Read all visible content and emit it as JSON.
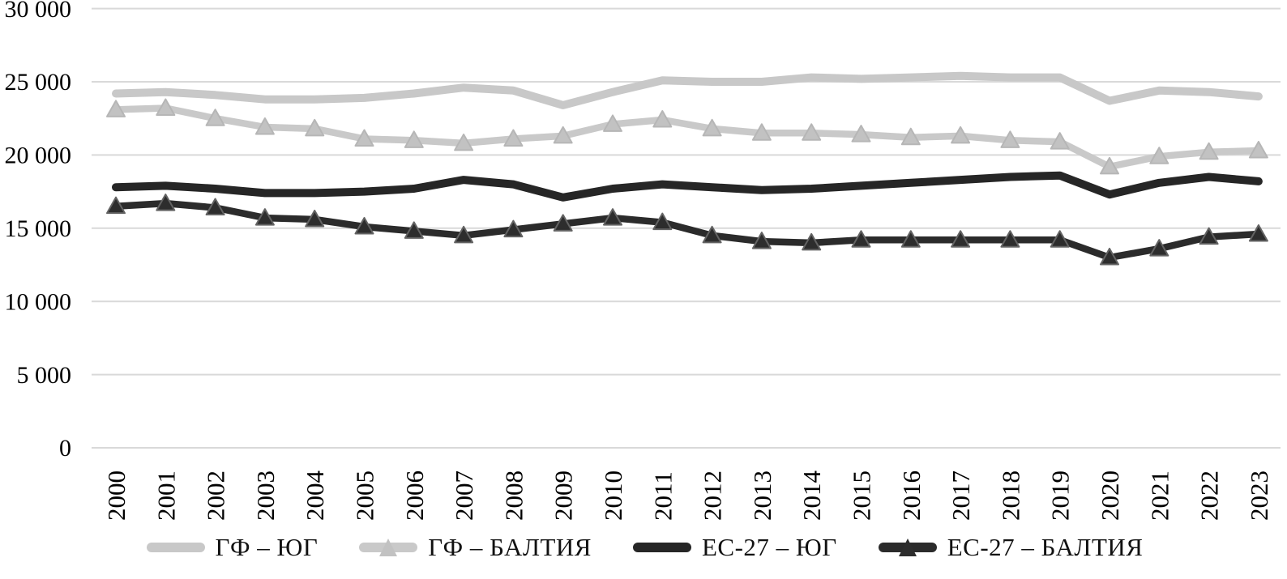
{
  "chart_data": {
    "type": "line",
    "title": "",
    "xlabel": "",
    "ylabel": "",
    "x": [
      2000,
      2001,
      2002,
      2003,
      2004,
      2005,
      2006,
      2007,
      2008,
      2009,
      2010,
      2011,
      2012,
      2013,
      2014,
      2015,
      2016,
      2017,
      2018,
      2019,
      2020,
      2021,
      2022,
      2023
    ],
    "ylim": [
      0,
      30000
    ],
    "ytick_step": 5000,
    "ytick_labels": [
      "0",
      "5 000",
      "10 000",
      "15 000",
      "20 000",
      "25 000",
      "30 000"
    ],
    "grid": "horizontal",
    "legend_position": "bottom",
    "colors": {
      "background": "#ffffff",
      "gridline": "#d9d9d9",
      "text": "#000000"
    },
    "series": [
      {
        "name": "ГФ – ЮГ",
        "color": "#c8c8c8",
        "marker": "none",
        "marker_fill": "#c8c8c8",
        "marker_stroke": "#c8c8c8",
        "values": [
          24200,
          24300,
          24100,
          23800,
          23800,
          23900,
          24200,
          24600,
          24400,
          23400,
          24300,
          25100,
          25000,
          25000,
          25300,
          25200,
          25300,
          25400,
          25300,
          25300,
          23700,
          24400,
          24300,
          24000
        ]
      },
      {
        "name": "ГФ – БАЛТИЯ",
        "color": "#c9c9c9",
        "marker": "triangle",
        "marker_fill": "#c2c2c2",
        "marker_stroke": "#b6b6b6",
        "values": [
          23100,
          23200,
          22500,
          21900,
          21800,
          21100,
          21000,
          20800,
          21100,
          21300,
          22100,
          22400,
          21800,
          21500,
          21500,
          21400,
          21200,
          21300,
          21000,
          20900,
          19200,
          19900,
          20200,
          20300
        ]
      },
      {
        "name": "ЕС-27 – ЮГ",
        "color": "#262626",
        "marker": "none",
        "marker_fill": "#262626",
        "marker_stroke": "#262626",
        "values": [
          17800,
          17900,
          17700,
          17400,
          17400,
          17500,
          17700,
          18300,
          18000,
          17100,
          17700,
          18000,
          17800,
          17600,
          17700,
          17900,
          18100,
          18300,
          18500,
          18600,
          17300,
          18100,
          18500,
          18200
        ]
      },
      {
        "name": "ЕС-27 – БАЛТИЯ",
        "color": "#2b2b2b",
        "marker": "triangle",
        "marker_fill": "#2d2d2d",
        "marker_stroke": "#636363",
        "values": [
          16500,
          16700,
          16400,
          15700,
          15600,
          15100,
          14800,
          14500,
          14900,
          15300,
          15700,
          15400,
          14500,
          14100,
          14000,
          14200,
          14200,
          14200,
          14200,
          14200,
          13000,
          13600,
          14400,
          14600
        ]
      }
    ]
  }
}
